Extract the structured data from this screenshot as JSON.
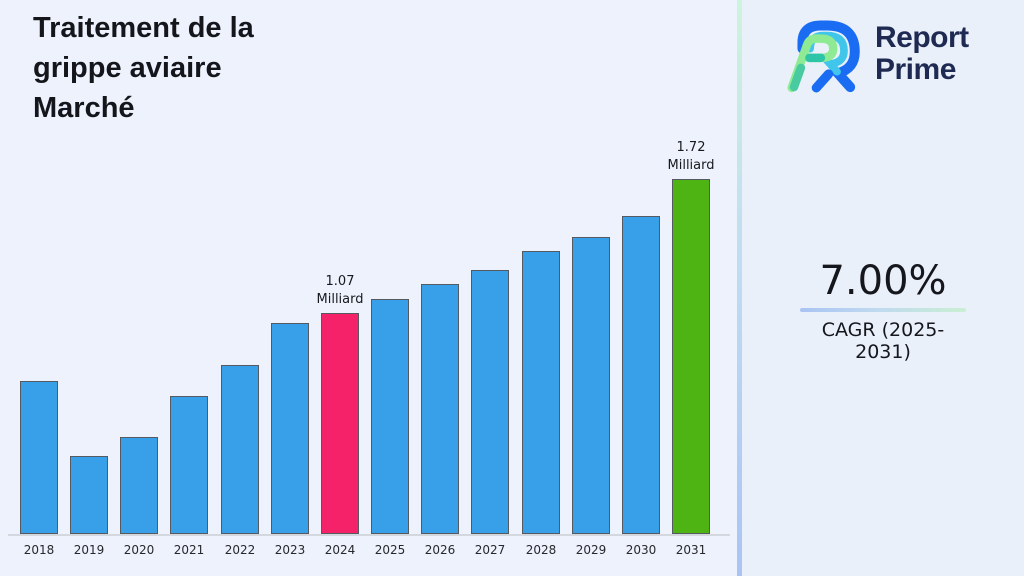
{
  "header": {
    "title": "Traitement de la\ngrippe aviaire\nMarché"
  },
  "brand": {
    "line1": "Report",
    "line2": "Prime",
    "text_color": "#1E2A52",
    "icon_colors": {
      "blue": "#1A6DF2",
      "cyan": "#3FC6EA",
      "light_green": "#8FEB93",
      "teal": "#2EC4A8"
    }
  },
  "cagr": {
    "value": "7.00%",
    "label": "CAGR (2025-2031)",
    "underline_gradient": [
      "#A9C4F3",
      "#C9EFD3"
    ]
  },
  "chart_data": {
    "type": "bar",
    "title": "Traitement de la grippe aviaire Marché",
    "xlabel": "",
    "ylabel": "",
    "unit": "Milliard",
    "grid": false,
    "legend": "none",
    "ylim": [
      0,
      1.9
    ],
    "categories": [
      "2018",
      "2019",
      "2020",
      "2021",
      "2022",
      "2023",
      "2024",
      "2025",
      "2026",
      "2027",
      "2028",
      "2029",
      "2030",
      "2031"
    ],
    "values": [
      0.74,
      0.38,
      0.47,
      0.67,
      0.82,
      1.02,
      1.07,
      1.14,
      1.21,
      1.28,
      1.37,
      1.44,
      1.54,
      1.72
    ],
    "bar_color": "#38A0E8",
    "bar_edge_color": "#555A60",
    "axis_color": "#D3D8DF",
    "highlight_colors": {
      "2024": "#F5226A",
      "2031": "#4EB414"
    },
    "annotations": [
      {
        "category": "2024",
        "text": "1.07\nMilliard"
      },
      {
        "category": "2031",
        "text": "1.72\nMilliard"
      }
    ]
  }
}
